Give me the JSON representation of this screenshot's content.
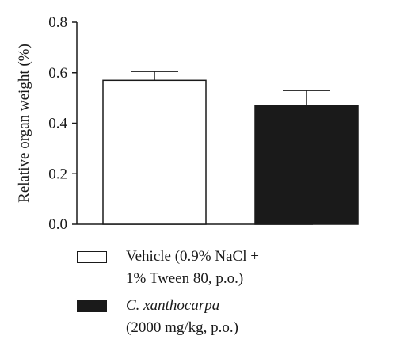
{
  "chart_data": {
    "type": "bar",
    "categories": [
      "Vehicle",
      "C. xanthocarpa"
    ],
    "values": [
      0.57,
      0.47
    ],
    "errors": [
      0.035,
      0.06
    ],
    "ylabel": "Relative organ weight (%)",
    "ylim": [
      0,
      0.8
    ],
    "yticks": [
      "0.0",
      "0.2",
      "0.4",
      "0.6",
      "0.8"
    ],
    "ytick_values": [
      0,
      0.2,
      0.4,
      0.6,
      0.8
    ],
    "bar_colors": [
      "#ffffff",
      "#1a1a1a"
    ],
    "grid": false,
    "legend_placement": "bottom"
  },
  "legend": {
    "items": [
      {
        "lines": [
          "Vehicle (0.9% NaCl +",
          "1% Tween 80, p.o.)"
        ],
        "color": "#ffffff"
      },
      {
        "lines": [
          "C. xanthocarpa",
          "(2000 mg/kg, p.o.)"
        ],
        "color": "#1a1a1a"
      }
    ]
  }
}
